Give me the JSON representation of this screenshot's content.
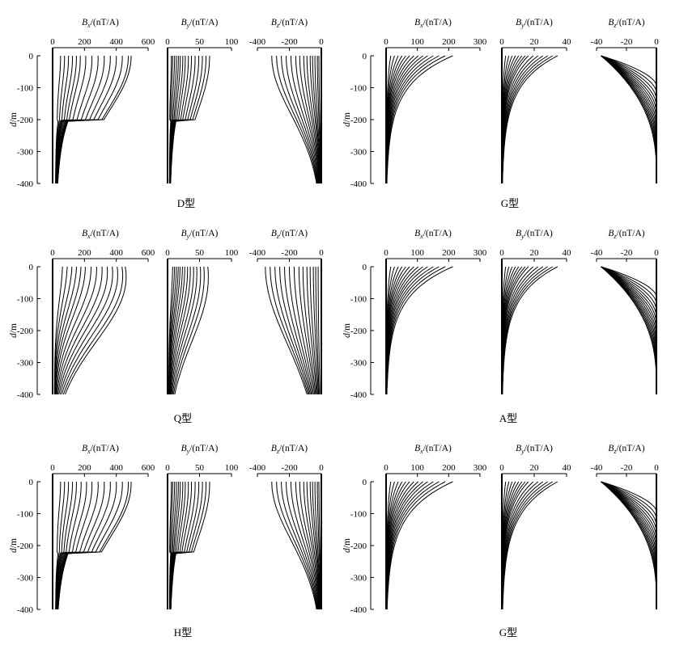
{
  "figure": {
    "panels": [
      {
        "id": "D",
        "caption": "D型"
      },
      {
        "id": "G1",
        "caption": "G型"
      },
      {
        "id": "Q",
        "caption": "Q型"
      },
      {
        "id": "A",
        "caption": "A型"
      },
      {
        "id": "H",
        "caption": "H型"
      },
      {
        "id": "G2",
        "caption": "G型"
      }
    ]
  },
  "chart_data": [
    {
      "type": "line",
      "panel": "D",
      "caption": "D型",
      "ylabel": "d/m",
      "ylim": [
        -400,
        0
      ],
      "yticks": [
        0,
        -100,
        -200,
        -300,
        -400
      ],
      "subplots": [
        {
          "var": "Bx",
          "title": "Bx/(nT/A)",
          "xlim": [
            0,
            600
          ],
          "xticks": [
            0,
            200,
            400,
            600
          ],
          "peaks": [
            50,
            75,
            100,
            125,
            150,
            175,
            210,
            250,
            290,
            330,
            370,
            410,
            450,
            490,
            510
          ],
          "decay": 120,
          "shape": "step",
          "step_depth": -200
        },
        {
          "var": "By",
          "title": "By/(nT/A)",
          "xlim": [
            0,
            100
          ],
          "xticks": [
            0,
            50,
            100
          ],
          "peaks": [
            6,
            8,
            11,
            14,
            17,
            20,
            24,
            28,
            33,
            38,
            44,
            50,
            56,
            62,
            68
          ],
          "decay": 120,
          "shape": "step",
          "step_depth": -200
        },
        {
          "var": "Bz",
          "title": "Bz/(nT/A)",
          "xlim": [
            -400,
            0
          ],
          "xticks": [
            -400,
            -200,
            0
          ],
          "peaks": [
            -15,
            -25,
            -40,
            -55,
            -70,
            -90,
            -110,
            -135,
            -160,
            -190,
            -220,
            -250,
            -280,
            -310
          ],
          "decay": 160,
          "shape": "neg"
        }
      ]
    },
    {
      "type": "line",
      "panel": "G1",
      "caption": "G型",
      "ylabel": "d/m",
      "ylim": [
        -400,
        0
      ],
      "yticks": [
        0,
        -100,
        -200,
        -300,
        -400
      ],
      "subplots": [
        {
          "var": "Bx",
          "title": "Bx/(nT/A)",
          "xlim": [
            0,
            300
          ],
          "xticks": [
            0,
            100,
            200,
            300
          ],
          "peaks": [
            12,
            24,
            36,
            48,
            60,
            72,
            86,
            100,
            115,
            130,
            148,
            166,
            186,
            210
          ],
          "decay": 70,
          "shape": "fan"
        },
        {
          "var": "By",
          "title": "By/(nT/A)",
          "xlim": [
            0,
            40
          ],
          "xticks": [
            0,
            20,
            40
          ],
          "peaks": [
            2,
            4,
            6,
            8,
            10,
            12,
            14,
            16,
            19,
            22,
            25,
            28,
            31,
            34
          ],
          "decay": 70,
          "shape": "fan"
        },
        {
          "var": "Bz",
          "title": "Bz/(nT/A)",
          "xlim": [
            -40,
            0
          ],
          "xticks": [
            -40,
            -20,
            0
          ],
          "peaks": [
            -37,
            -37,
            -37,
            -37,
            -37,
            -37,
            -37,
            -37,
            -37,
            -37,
            -37,
            -37,
            -37,
            -37
          ],
          "decay": 180,
          "shape": "sweep"
        }
      ]
    },
    {
      "type": "line",
      "panel": "Q",
      "caption": "Q型",
      "ylabel": "d/m",
      "ylim": [
        -400,
        0
      ],
      "yticks": [
        0,
        -100,
        -200,
        -300,
        -400
      ],
      "subplots": [
        {
          "var": "Bx",
          "title": "Bx/(nT/A)",
          "xlim": [
            0,
            600
          ],
          "xticks": [
            0,
            200,
            400,
            600
          ],
          "peaks": [
            50,
            80,
            110,
            140,
            170,
            200,
            240,
            280,
            320,
            360,
            400,
            440,
            480,
            510
          ],
          "decay": 180,
          "shape": "smooth"
        },
        {
          "var": "By",
          "title": "By/(nT/A)",
          "xlim": [
            0,
            100
          ],
          "xticks": [
            0,
            50,
            100
          ],
          "peaks": [
            6,
            9,
            12,
            15,
            18,
            22,
            26,
            31,
            36,
            42,
            48,
            55,
            62,
            70
          ],
          "decay": 180,
          "shape": "smooth"
        },
        {
          "var": "Bz",
          "title": "Bz/(nT/A)",
          "xlim": [
            -400,
            0
          ],
          "xticks": [
            -400,
            -200,
            0
          ],
          "peaks": [
            -20,
            -35,
            -50,
            -70,
            -90,
            -115,
            -140,
            -170,
            -200,
            -230,
            -260,
            -290,
            -320,
            -350
          ],
          "decay": 250,
          "shape": "neg"
        }
      ]
    },
    {
      "type": "line",
      "panel": "A",
      "caption": "A型",
      "ylabel": "d/m",
      "ylim": [
        -400,
        0
      ],
      "yticks": [
        0,
        -100,
        -200,
        -300,
        -400
      ],
      "subplots": [
        {
          "var": "Bx",
          "title": "Bx/(nT/A)",
          "xlim": [
            0,
            300
          ],
          "xticks": [
            0,
            100,
            200,
            300
          ],
          "peaks": [
            12,
            24,
            36,
            48,
            60,
            72,
            86,
            100,
            115,
            130,
            148,
            166,
            186,
            210
          ],
          "decay": 70,
          "shape": "fan"
        },
        {
          "var": "By",
          "title": "By/(nT/A)",
          "xlim": [
            0,
            40
          ],
          "xticks": [
            0,
            20,
            40
          ],
          "peaks": [
            2,
            4,
            6,
            8,
            10,
            12,
            14,
            16,
            19,
            22,
            25,
            28,
            31,
            34
          ],
          "decay": 70,
          "shape": "fan"
        },
        {
          "var": "Bz",
          "title": "Bz/(nT/A)",
          "xlim": [
            -40,
            0
          ],
          "xticks": [
            -40,
            -20,
            0
          ],
          "peaks": [
            -37,
            -37,
            -37,
            -37,
            -37,
            -37,
            -37,
            -37,
            -37,
            -37,
            -37,
            -37,
            -37,
            -37
          ],
          "decay": 180,
          "shape": "sweep"
        }
      ]
    },
    {
      "type": "line",
      "panel": "H",
      "caption": "H型",
      "ylabel": "d/m",
      "ylim": [
        -400,
        0
      ],
      "yticks": [
        0,
        -100,
        -200,
        -300,
        -400
      ],
      "subplots": [
        {
          "var": "Bx",
          "title": "Bx/(nT/A)",
          "xlim": [
            0,
            600
          ],
          "xticks": [
            0,
            200,
            400,
            600
          ],
          "peaks": [
            50,
            75,
            100,
            125,
            150,
            180,
            215,
            250,
            290,
            330,
            370,
            410,
            450,
            490,
            510
          ],
          "decay": 120,
          "shape": "step",
          "step_depth": -220
        },
        {
          "var": "By",
          "title": "By/(nT/A)",
          "xlim": [
            0,
            100
          ],
          "xticks": [
            0,
            50,
            100
          ],
          "peaks": [
            6,
            8,
            11,
            14,
            17,
            20,
            24,
            28,
            33,
            38,
            44,
            50,
            56,
            62,
            68
          ],
          "decay": 120,
          "shape": "step",
          "step_depth": -220
        },
        {
          "var": "Bz",
          "title": "Bz/(nT/A)",
          "xlim": [
            -400,
            0
          ],
          "xticks": [
            -400,
            -200,
            0
          ],
          "peaks": [
            -15,
            -25,
            -40,
            -55,
            -70,
            -90,
            -110,
            -135,
            -160,
            -190,
            -220,
            -250,
            -280,
            -310
          ],
          "decay": 160,
          "shape": "neg"
        }
      ]
    },
    {
      "type": "line",
      "panel": "G2",
      "caption": "G型",
      "ylabel": "d/m",
      "ylim": [
        -400,
        0
      ],
      "yticks": [
        0,
        -100,
        -200,
        -300,
        -400
      ],
      "subplots": [
        {
          "var": "Bx",
          "title": "Bx/(nT/A)",
          "xlim": [
            0,
            300
          ],
          "xticks": [
            0,
            100,
            200,
            300
          ],
          "peaks": [
            12,
            24,
            36,
            48,
            60,
            72,
            86,
            100,
            115,
            130,
            148,
            166,
            186,
            210
          ],
          "decay": 75,
          "shape": "fan"
        },
        {
          "var": "By",
          "title": "By/(nT/A)",
          "xlim": [
            0,
            40
          ],
          "xticks": [
            0,
            20,
            40
          ],
          "peaks": [
            2,
            4,
            6,
            8,
            10,
            12,
            14,
            16,
            19,
            22,
            25,
            28,
            31,
            34
          ],
          "decay": 75,
          "shape": "fan"
        },
        {
          "var": "Bz",
          "title": "Bz/(nT/A)",
          "xlim": [
            -40,
            0
          ],
          "xticks": [
            -40,
            -20,
            0
          ],
          "peaks": [
            -37,
            -37,
            -37,
            -37,
            -37,
            -37,
            -37,
            -37,
            -37,
            -37,
            -37,
            -37,
            -37,
            -37
          ],
          "decay": 200,
          "shape": "sweep"
        }
      ]
    }
  ]
}
